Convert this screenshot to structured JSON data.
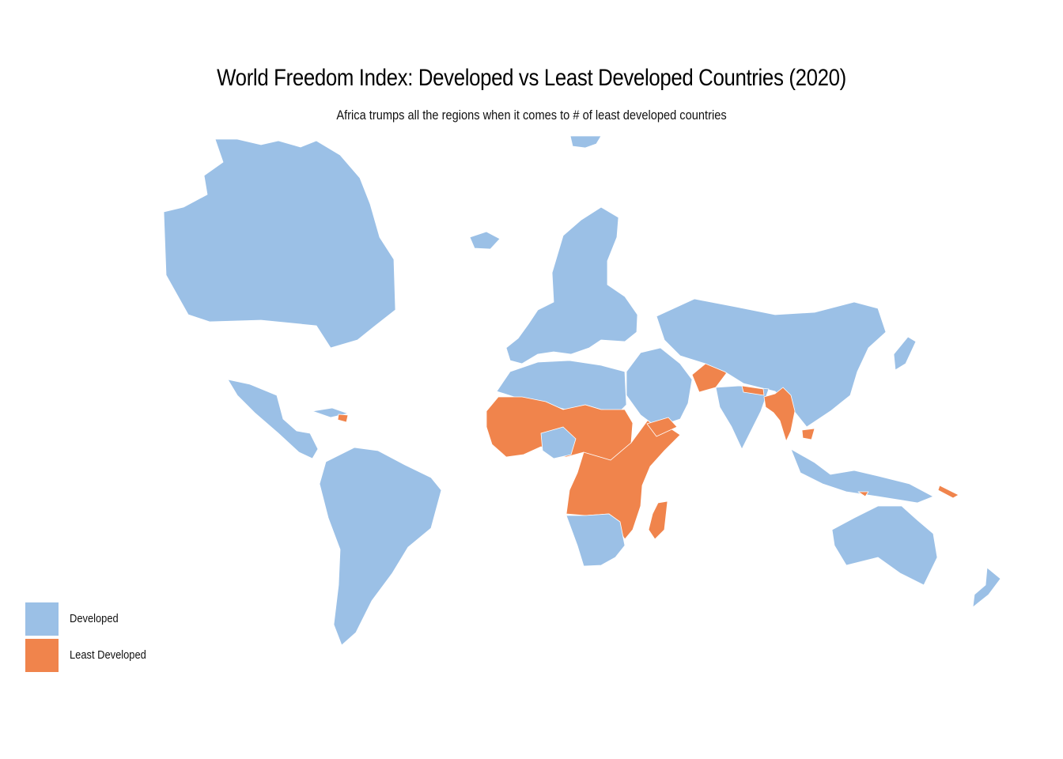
{
  "header": {
    "title": "World Freedom Index: Developed vs Least Developed Countries (2020)",
    "subtitle": "Africa trumps all the regions when it comes to # of least developed countries"
  },
  "legend": {
    "items": [
      {
        "label": "Developed",
        "color": "#9bc0e6"
      },
      {
        "label": "Least Developed",
        "color": "#f0844c"
      }
    ]
  },
  "colors": {
    "developed": "#9bc0e6",
    "least_developed": "#f0844c",
    "background": "#ffffff"
  },
  "regions": [
    {
      "name": "North America",
      "category": "developed"
    },
    {
      "name": "Greenland",
      "category": "developed"
    },
    {
      "name": "Central America and Mexico",
      "category": "developed"
    },
    {
      "name": "Caribbean",
      "category": "developed"
    },
    {
      "name": "Haiti",
      "category": "least_developed"
    },
    {
      "name": "South America",
      "category": "developed"
    },
    {
      "name": "Europe",
      "category": "developed"
    },
    {
      "name": "Iceland",
      "category": "developed"
    },
    {
      "name": "North Africa",
      "category": "developed"
    },
    {
      "name": "Sahel and West Africa",
      "category": "least_developed"
    },
    {
      "name": "Nigeria",
      "category": "developed"
    },
    {
      "name": "Kenya",
      "category": "developed"
    },
    {
      "name": "Central and East Africa",
      "category": "least_developed"
    },
    {
      "name": "Southern Africa",
      "category": "developed"
    },
    {
      "name": "Madagascar",
      "category": "least_developed"
    },
    {
      "name": "Middle East",
      "category": "developed"
    },
    {
      "name": "Yemen",
      "category": "least_developed"
    },
    {
      "name": "Afghanistan",
      "category": "least_developed"
    },
    {
      "name": "Russia and Asia",
      "category": "developed"
    },
    {
      "name": "India",
      "category": "developed"
    },
    {
      "name": "Nepal",
      "category": "least_developed"
    },
    {
      "name": "Bangladesh and Myanmar",
      "category": "least_developed"
    },
    {
      "name": "Cambodia",
      "category": "least_developed"
    },
    {
      "name": "Japan",
      "category": "developed"
    },
    {
      "name": "Maritime Southeast Asia",
      "category": "developed"
    },
    {
      "name": "Timor-Leste",
      "category": "least_developed"
    },
    {
      "name": "Solomon Islands",
      "category": "least_developed"
    },
    {
      "name": "Australia",
      "category": "developed"
    },
    {
      "name": "New Zealand",
      "category": "developed"
    }
  ]
}
